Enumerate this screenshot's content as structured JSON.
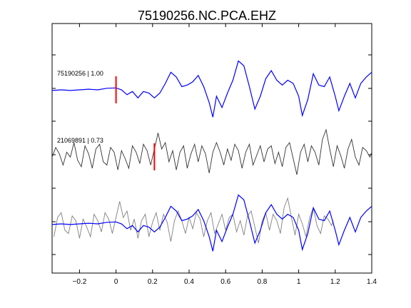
{
  "chart_data": {
    "type": "line",
    "title": "75190256.NC.PCA.EHZ",
    "xlabel": "",
    "ylabel": "",
    "xlim": [
      -0.35,
      1.4
    ],
    "x_ticks": [
      -0.2,
      0,
      0.2,
      0.4,
      0.6,
      0.8,
      1,
      1.2,
      1.4
    ],
    "x_tick_labels": [
      "−0.2",
      "0",
      "0.2",
      "0.4",
      "0.6",
      "0.8",
      "1",
      "1.2",
      "1.4"
    ],
    "grid": false,
    "traces": [
      {
        "label": "75190256 | 1.00",
        "color": "#0000ff",
        "pick_time": 0.0,
        "points": [
          [
            -0.35,
            -0.02
          ],
          [
            -0.3,
            0.0
          ],
          [
            -0.25,
            -0.02
          ],
          [
            -0.2,
            0.0
          ],
          [
            -0.15,
            0.02
          ],
          [
            -0.1,
            0.0
          ],
          [
            -0.05,
            0.05
          ],
          [
            0.0,
            0.06
          ],
          [
            0.03,
            0.0
          ],
          [
            0.06,
            -0.15
          ],
          [
            0.09,
            -0.05
          ],
          [
            0.12,
            -0.25
          ],
          [
            0.15,
            -0.05
          ],
          [
            0.18,
            -0.1
          ],
          [
            0.21,
            -0.25
          ],
          [
            0.24,
            -0.1
          ],
          [
            0.27,
            0.2
          ],
          [
            0.3,
            0.55
          ],
          [
            0.33,
            0.4
          ],
          [
            0.36,
            0.1
          ],
          [
            0.39,
            0.15
          ],
          [
            0.42,
            0.25
          ],
          [
            0.45,
            0.45
          ],
          [
            0.48,
            0.1
          ],
          [
            0.51,
            -0.4
          ],
          [
            0.53,
            -0.85
          ],
          [
            0.55,
            -0.2
          ],
          [
            0.58,
            -0.55
          ],
          [
            0.61,
            -0.1
          ],
          [
            0.64,
            0.3
          ],
          [
            0.67,
            0.9
          ],
          [
            0.7,
            0.75
          ],
          [
            0.73,
            0.1
          ],
          [
            0.76,
            -0.6
          ],
          [
            0.79,
            -0.2
          ],
          [
            0.82,
            0.35
          ],
          [
            0.85,
            0.6
          ],
          [
            0.88,
            0.3
          ],
          [
            0.91,
            0.15
          ],
          [
            0.94,
            0.3
          ],
          [
            0.97,
            0.2
          ],
          [
            1.0,
            -0.2
          ],
          [
            1.02,
            -0.8
          ],
          [
            1.05,
            -0.3
          ],
          [
            1.08,
            0.5
          ],
          [
            1.11,
            0.15
          ],
          [
            1.14,
            0.1
          ],
          [
            1.17,
            0.4
          ],
          [
            1.2,
            -0.2
          ],
          [
            1.22,
            -0.65
          ],
          [
            1.25,
            -0.2
          ],
          [
            1.28,
            0.2
          ],
          [
            1.31,
            -0.25
          ],
          [
            1.34,
            0.2
          ],
          [
            1.37,
            0.4
          ],
          [
            1.4,
            0.55
          ]
        ]
      },
      {
        "label": "21069891 | 0.73",
        "color": "#333333",
        "pick_time": 0.21,
        "points": [
          [
            -0.35,
            -0.05
          ],
          [
            -0.33,
            0.25
          ],
          [
            -0.31,
            0.05
          ],
          [
            -0.29,
            -0.3
          ],
          [
            -0.27,
            0.1
          ],
          [
            -0.25,
            -0.05
          ],
          [
            -0.23,
            0.4
          ],
          [
            -0.21,
            -0.15
          ],
          [
            -0.19,
            -0.35
          ],
          [
            -0.17,
            0.3
          ],
          [
            -0.15,
            0.05
          ],
          [
            -0.13,
            -0.4
          ],
          [
            -0.11,
            0.2
          ],
          [
            -0.09,
            0.35
          ],
          [
            -0.07,
            -0.2
          ],
          [
            -0.05,
            -0.3
          ],
          [
            -0.03,
            0.25
          ],
          [
            -0.01,
            0.1
          ],
          [
            0.01,
            -0.45
          ],
          [
            0.03,
            0.15
          ],
          [
            0.05,
            -0.1
          ],
          [
            0.07,
            -0.4
          ],
          [
            0.09,
            0.3
          ],
          [
            0.11,
            0.1
          ],
          [
            0.13,
            -0.25
          ],
          [
            0.15,
            0.35
          ],
          [
            0.17,
            0.15
          ],
          [
            0.19,
            -0.3
          ],
          [
            0.21,
            0.2
          ],
          [
            0.23,
            0.7
          ],
          [
            0.25,
            0.2
          ],
          [
            0.27,
            0.4
          ],
          [
            0.29,
            -0.2
          ],
          [
            0.31,
            0.15
          ],
          [
            0.33,
            -0.45
          ],
          [
            0.35,
            0.1
          ],
          [
            0.37,
            0.3
          ],
          [
            0.39,
            -0.4
          ],
          [
            0.41,
            0.05
          ],
          [
            0.43,
            0.35
          ],
          [
            0.45,
            -0.2
          ],
          [
            0.47,
            0.3
          ],
          [
            0.49,
            0.05
          ],
          [
            0.51,
            -0.55
          ],
          [
            0.53,
            0.1
          ],
          [
            0.55,
            0.4
          ],
          [
            0.57,
            0.1
          ],
          [
            0.59,
            -0.3
          ],
          [
            0.61,
            0.2
          ],
          [
            0.63,
            -0.15
          ],
          [
            0.65,
            0.35
          ],
          [
            0.67,
            0.15
          ],
          [
            0.69,
            -0.4
          ],
          [
            0.71,
            0.1
          ],
          [
            0.73,
            0.35
          ],
          [
            0.75,
            -0.3
          ],
          [
            0.77,
            0.0
          ],
          [
            0.79,
            0.3
          ],
          [
            0.81,
            -0.2
          ],
          [
            0.83,
            0.2
          ],
          [
            0.85,
            0.3
          ],
          [
            0.87,
            -0.25
          ],
          [
            0.89,
            0.1
          ],
          [
            0.91,
            -0.35
          ],
          [
            0.93,
            0.25
          ],
          [
            0.95,
            0.4
          ],
          [
            0.97,
            -0.1
          ],
          [
            0.99,
            -0.6
          ],
          [
            1.01,
            0.1
          ],
          [
            1.03,
            0.35
          ],
          [
            1.05,
            -0.2
          ],
          [
            1.07,
            0.3
          ],
          [
            1.09,
            0.1
          ],
          [
            1.11,
            -0.3
          ],
          [
            1.13,
            0.5
          ],
          [
            1.15,
            0.8
          ],
          [
            1.17,
            0.2
          ],
          [
            1.19,
            -0.35
          ],
          [
            1.21,
            0.3
          ],
          [
            1.23,
            0.0
          ],
          [
            1.25,
            -0.4
          ],
          [
            1.27,
            0.2
          ],
          [
            1.29,
            0.5
          ],
          [
            1.31,
            -0.05
          ],
          [
            1.33,
            -0.3
          ],
          [
            1.35,
            0.25
          ],
          [
            1.37,
            0.15
          ],
          [
            1.39,
            -0.05
          ],
          [
            1.4,
            0.1
          ]
        ]
      }
    ],
    "overlay": {
      "description_colors": [
        "#0000ff",
        "#808080"
      ]
    }
  },
  "colors": {
    "trace1": "#0000ff",
    "trace2": "#333333",
    "overlay_gray": "#808080",
    "pick": "#ff0000",
    "axes": "#000000"
  }
}
